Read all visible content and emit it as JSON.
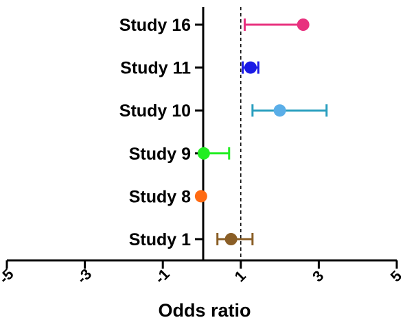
{
  "chart_data": {
    "type": "forest",
    "xlabel": "Odds ratio",
    "x_tick_labels": [
      "-5",
      "-3",
      "-1",
      "1",
      "3",
      "5"
    ],
    "x_tick_values": [
      -5,
      -3,
      -1,
      1,
      3,
      5
    ],
    "xlim": [
      -5,
      5
    ],
    "reference_line": 1,
    "axis_color": "#000000",
    "studies": [
      {
        "label": "Study 16",
        "estimate": 2.6,
        "low": 1.1,
        "high": 2.6,
        "color": "#e8317e"
      },
      {
        "label": "Study 11",
        "estimate": 1.25,
        "low": 1.05,
        "high": 1.45,
        "color": "#1a1ae6"
      },
      {
        "label": "Study 10",
        "estimate": 2.0,
        "low": 1.3,
        "high": 3.2,
        "color": "#2a9fbf",
        "marker_color": "#5aaee8"
      },
      {
        "label": "Study 9",
        "estimate": 0.05,
        "low": 0.05,
        "high": 0.7,
        "color": "#22ee22"
      },
      {
        "label": "Study 8",
        "estimate": -0.02,
        "low": -0.02,
        "high": -0.02,
        "color": "#ff6a12"
      },
      {
        "label": "Study 1",
        "estimate": 0.75,
        "low": 0.4,
        "high": 1.3,
        "color": "#8a5e26"
      }
    ]
  }
}
